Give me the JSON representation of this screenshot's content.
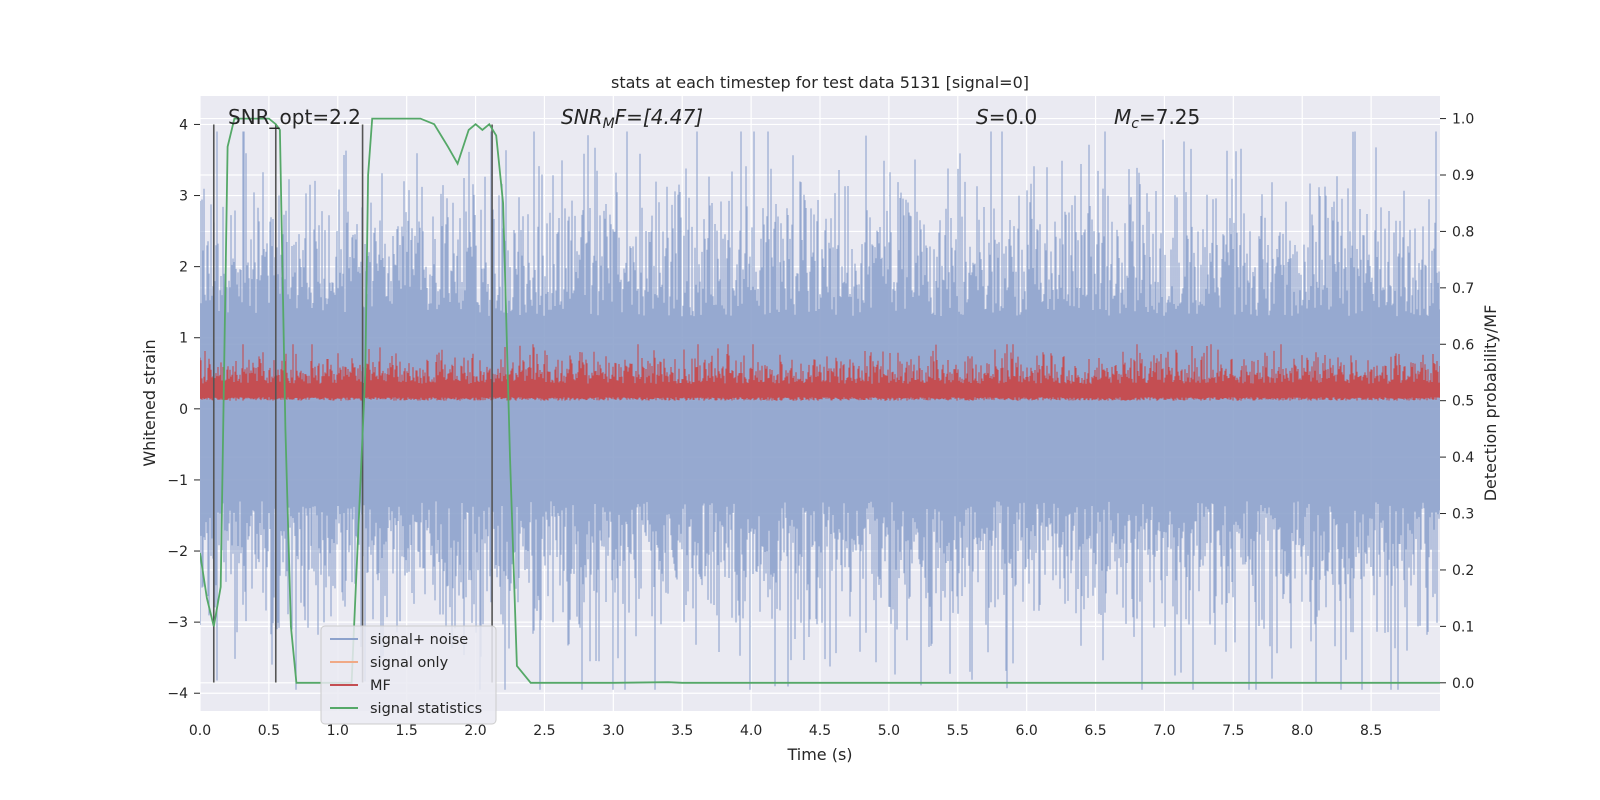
{
  "chart_data": {
    "type": "line",
    "title": "stats at each timestep for test data 5131 [signal=0]",
    "xlabel": "Time (s)",
    "ylabel_left": "Whitened strain",
    "ylabel_right": "Detection probability/MF",
    "xlim": [
      0.0,
      9.0
    ],
    "ylim_left": [
      -4.25,
      4.4
    ],
    "ylim_right": [
      -0.05,
      1.04
    ],
    "xticks": [
      "0.0",
      "0.5",
      "1.0",
      "1.5",
      "2.0",
      "2.5",
      "3.0",
      "3.5",
      "4.0",
      "4.5",
      "5.0",
      "5.5",
      "6.0",
      "6.5",
      "7.0",
      "7.5",
      "8.0",
      "8.5"
    ],
    "xtick_values": [
      0.0,
      0.5,
      1.0,
      1.5,
      2.0,
      2.5,
      3.0,
      3.5,
      4.0,
      4.5,
      5.0,
      5.5,
      6.0,
      6.5,
      7.0,
      7.5,
      8.0,
      8.5
    ],
    "yticks_left": [
      "4",
      "3",
      "2",
      "1",
      "0",
      "−1",
      "−2",
      "−3",
      "−4"
    ],
    "ytick_values_left": [
      4,
      3,
      2,
      1,
      0,
      -1,
      -2,
      -3,
      -4
    ],
    "yticks_right": [
      "1.0",
      "0.9",
      "0.8",
      "0.7",
      "0.6",
      "0.5",
      "0.4",
      "0.3",
      "0.2",
      "0.1",
      "0.0"
    ],
    "ytick_values_right": [
      1.0,
      0.9,
      0.8,
      0.7,
      0.6,
      0.5,
      0.4,
      0.3,
      0.2,
      0.1,
      0.0
    ],
    "annotations": {
      "snr_opt": "SNR_opt=2.2",
      "snr_mf_base": "SNR",
      "snr_mf_sub": "M",
      "snr_mf_rest": "F=[4.47]",
      "s_base": "S",
      "s_rest": "=0.0",
      "mc_base": "M",
      "mc_sub": "c",
      "mc_rest": "=7.25"
    },
    "legend": {
      "location": "lower-left",
      "entries": [
        "signal+ noise",
        "signal only",
        "MF",
        "signal statistics"
      ]
    },
    "colors": {
      "signal_noise": "#8da2cc",
      "signal_only": "#f0a986",
      "mf": "#c44e52",
      "signal_statistics": "#55a868",
      "vlines": "#555555",
      "background": "#eaeaf2",
      "grid": "#ffffff"
    },
    "series": [
      {
        "name": "signal+ noise",
        "axis": "left",
        "description": "random noise, amplitude about 3 to 4 around 0"
      },
      {
        "name": "signal only",
        "axis": "left",
        "values": []
      },
      {
        "name": "MF",
        "axis": "right",
        "baseline": 0.51,
        "range": [
          0.5,
          0.6
        ]
      },
      {
        "name": "signal statistics",
        "axis": "right",
        "x": [
          0.0,
          0.05,
          0.1,
          0.15,
          0.2,
          0.25,
          0.3,
          0.4,
          0.5,
          0.55,
          0.58,
          0.62,
          0.66,
          0.7,
          0.8,
          1.0,
          1.1,
          1.2,
          1.22,
          1.25,
          1.3,
          1.4,
          1.5,
          1.6,
          1.7,
          1.75,
          1.8,
          1.87,
          1.95,
          2.0,
          2.05,
          2.1,
          2.15,
          2.2,
          2.25,
          2.3,
          2.4,
          2.5,
          3.0,
          3.4,
          3.5,
          4.0,
          5.0,
          6.0,
          7.0,
          8.0,
          9.0
        ],
        "values": [
          0.23,
          0.15,
          0.1,
          0.17,
          0.95,
          1.0,
          1.0,
          1.0,
          1.0,
          0.99,
          0.98,
          0.45,
          0.1,
          0.0,
          0.0,
          0.0,
          0.0,
          0.55,
          0.9,
          1.0,
          1.0,
          1.0,
          1.0,
          1.0,
          0.99,
          0.97,
          0.95,
          0.92,
          0.98,
          0.99,
          0.98,
          0.99,
          0.97,
          0.85,
          0.4,
          0.03,
          0.0,
          0.0,
          0.0,
          0.001,
          0.0,
          0.0,
          0.0,
          0.0,
          0.0,
          0.0,
          0.0
        ]
      }
    ],
    "vertical_lines_x": [
      0.1,
      0.55,
      1.18,
      2.12
    ]
  }
}
